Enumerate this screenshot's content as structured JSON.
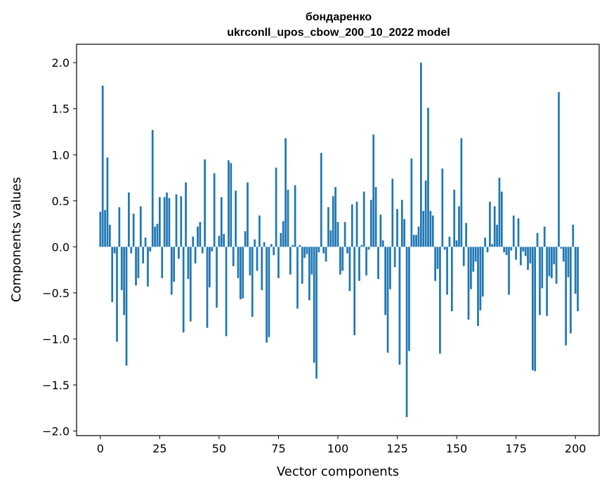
{
  "chart_data": {
    "type": "bar",
    "title": "бондаренко",
    "subtitle": "ukrconll_upos_cbow_200_10_2022 model",
    "xlabel": "Vector components",
    "ylabel": "Components values",
    "xlim": [
      -10,
      210
    ],
    "ylim": [
      -2.05,
      2.2
    ],
    "xticks": [
      0,
      25,
      50,
      75,
      100,
      125,
      150,
      175,
      200
    ],
    "yticks": [
      -2.0,
      -1.5,
      -1.0,
      -0.5,
      0.0,
      0.5,
      1.0,
      1.5,
      2.0
    ],
    "ytick_labels": [
      "−2.0",
      "−1.5",
      "−1.0",
      "−0.5",
      "0.0",
      "0.5",
      "1.0",
      "1.5",
      "2.0"
    ],
    "bar_color": "#1f77b4",
    "values": [
      0.38,
      1.75,
      0.4,
      0.97,
      0.24,
      -0.6,
      -0.07,
      -1.03,
      0.43,
      -0.47,
      -0.74,
      -1.29,
      0.59,
      -0.07,
      0.36,
      -0.42,
      -0.34,
      0.44,
      -0.18,
      0.1,
      -0.43,
      -0.05,
      1.27,
      0.22,
      0.25,
      0.54,
      -0.34,
      0.54,
      0.59,
      0.53,
      -0.52,
      -0.38,
      0.57,
      -0.13,
      0.55,
      -0.93,
      0.7,
      -0.35,
      -0.81,
      0.11,
      -0.18,
      0.22,
      0.27,
      -0.07,
      0.95,
      -0.88,
      -0.44,
      -0.05,
      0.8,
      -0.66,
      0.12,
      0.54,
      0.14,
      -0.97,
      0.94,
      0.91,
      -0.21,
      0.61,
      -0.34,
      -0.57,
      -0.56,
      0.17,
      0.7,
      -0.31,
      -0.76,
      0.08,
      -0.26,
      0.34,
      -0.47,
      0.05,
      -1.04,
      -0.98,
      0.03,
      -0.09,
      0.86,
      -0.34,
      0.15,
      0.28,
      1.18,
      0.62,
      -0.3,
      0.02,
      0.67,
      -0.67,
      0.02,
      -0.4,
      -0.12,
      -0.08,
      -0.58,
      -0.3,
      -1.26,
      -1.43,
      -0.06,
      1.02,
      -0.07,
      -0.16,
      0.43,
      0.18,
      0.55,
      0.65,
      0.27,
      -0.3,
      -0.26,
      0.27,
      -0.07,
      -0.48,
      0.46,
      -0.96,
      0.49,
      -0.37,
      0.02,
      0.6,
      -0.31,
      -0.03,
      0.51,
      1.22,
      0.65,
      -0.35,
      0.35,
      0.07,
      -0.74,
      -1.15,
      -0.46,
      0.74,
      -0.22,
      0.41,
      -1.28,
      0.51,
      0.3,
      -1.85,
      -1.13,
      0.96,
      0.13,
      0.13,
      0.22,
      2.0,
      0.39,
      0.72,
      1.51,
      0.39,
      0.34,
      -0.37,
      -0.24,
      -1.16,
      0.85,
      -0.03,
      -0.52,
      0.11,
      -0.7,
      0.62,
      0.07,
      0.44,
      1.18,
      -0.21,
      0.26,
      -0.79,
      -0.46,
      -0.27,
      -0.16,
      -0.86,
      -0.69,
      -0.54,
      0.1,
      -0.06,
      0.49,
      0.03,
      0.44,
      0.24,
      0.75,
      0.6,
      -0.06,
      -0.09,
      -0.52,
      -0.04,
      0.34,
      -0.14,
      0.31,
      -0.2,
      -0.05,
      -0.1,
      -0.25,
      -0.18,
      -1.34,
      -1.35,
      0.15,
      -0.74,
      -0.45,
      0.22,
      -0.75,
      -0.32,
      -0.34,
      -0.19,
      -0.4,
      1.68,
      -0.02,
      -0.16,
      -1.07,
      -0.33,
      -0.94,
      0.24,
      -0.51,
      -0.7
    ]
  }
}
